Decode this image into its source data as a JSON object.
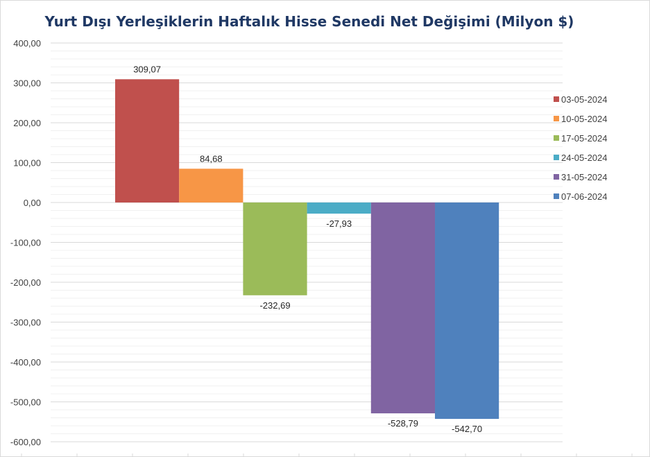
{
  "chart_data": {
    "type": "bar",
    "title": "Yurt Dışı Yerleşiklerin Haftalık Hisse Senedi Net Değişimi (Milyon $)",
    "xlabel": "",
    "ylabel": "",
    "ylim": [
      -600,
      400
    ],
    "yticks": [
      "400,00",
      "300,00",
      "200,00",
      "100,00",
      "0,00",
      "-100,00",
      "-200,00",
      "-300,00",
      "-400,00",
      "-500,00",
      "-600,00"
    ],
    "series": [
      {
        "name": "03-05-2024",
        "value": 309.07,
        "label": "309,07",
        "color": "#c0504d"
      },
      {
        "name": "10-05-2024",
        "value": 84.68,
        "label": "84,68",
        "color": "#f79646"
      },
      {
        "name": "17-05-2024",
        "value": -232.69,
        "label": "-232,69",
        "color": "#9bbb59"
      },
      {
        "name": "24-05-2024",
        "value": -27.93,
        "label": "-27,93",
        "color": "#4bacc6"
      },
      {
        "name": "31-05-2024",
        "value": -528.79,
        "label": "-528,79",
        "color": "#8064a2"
      },
      {
        "name": "07-06-2024",
        "value": -542.7,
        "label": "-542,70",
        "color": "#4f81bd"
      }
    ],
    "grid": true,
    "legend_position": "right"
  }
}
